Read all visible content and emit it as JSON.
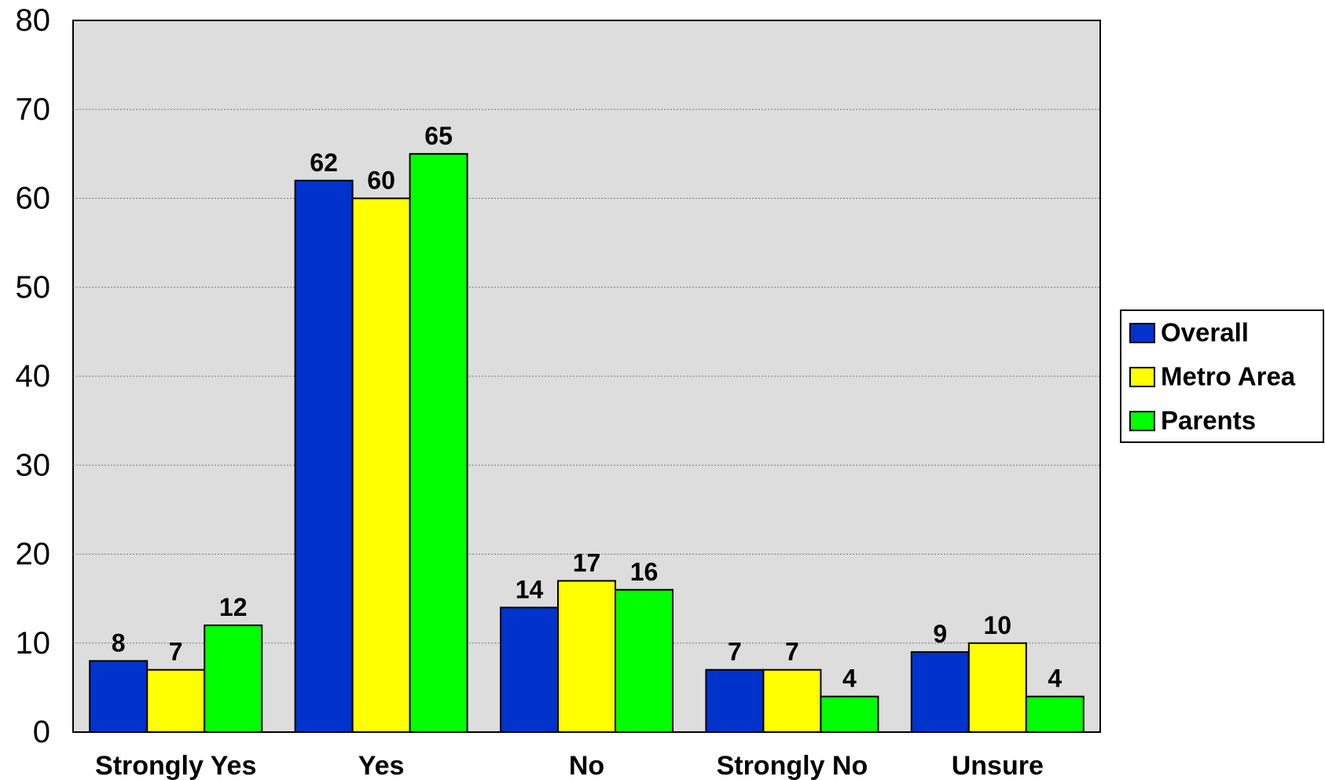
{
  "chart_data": {
    "type": "bar",
    "title": "",
    "xlabel": "",
    "ylabel": "",
    "categories": [
      "Strongly Yes",
      "Yes",
      "No",
      "Strongly No",
      "Unsure"
    ],
    "series": [
      {
        "name": "Overall",
        "color": "#0033CC",
        "values": [
          8,
          62,
          14,
          7,
          9
        ]
      },
      {
        "name": "Metro Area",
        "color": "#FFFF00",
        "values": [
          7,
          60,
          17,
          7,
          10
        ]
      },
      {
        "name": "Parents",
        "color": "#00FF00",
        "values": [
          12,
          65,
          16,
          4,
          4
        ]
      }
    ],
    "ylim": [
      0,
      80
    ],
    "yticks": [
      0,
      10,
      20,
      30,
      40,
      50,
      60,
      70,
      80
    ],
    "grid": true,
    "plot_background": "#DDDDDD",
    "legend_position": "right"
  }
}
